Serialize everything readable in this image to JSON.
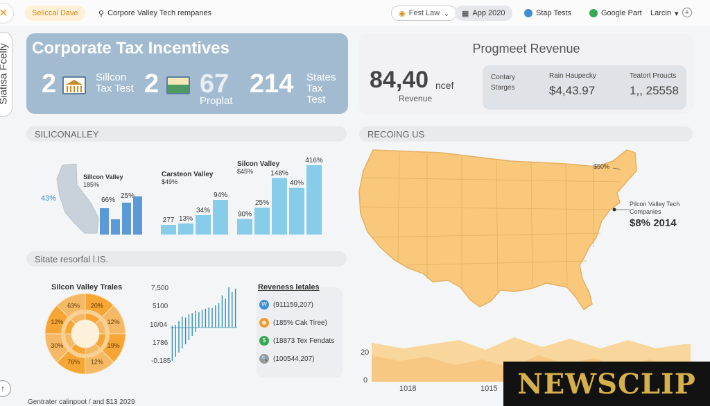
{
  "topbar": {
    "brand": "Seliccal Dave",
    "search_text": "Corpore Valley Tech rempanes",
    "filter_label": "Fest Law",
    "app_label": "App 2020",
    "stap_label": "Stap Tests",
    "google_label": "Google Part",
    "user_label": "Larcin"
  },
  "side_tab": {
    "label": "Siatisa Fcelly"
  },
  "hero": {
    "title": "Corporate Tax Incentives",
    "items": [
      {
        "num": "2",
        "label": "Sillcon Tax Test"
      },
      {
        "num": "2",
        "label": ""
      },
      {
        "num": "67",
        "label": "Proplat"
      },
      {
        "num": "214",
        "label": "States Tax Test"
      }
    ]
  },
  "revenue": {
    "title": "Progmeet Revenue",
    "big_value": "84,40",
    "big_unit": "ncef",
    "big_caption": "Revenue",
    "stats": [
      {
        "label": "Contary Starges",
        "value": ""
      },
      {
        "label": "Rain Haupecky",
        "value": "$4,43.97"
      },
      {
        "label": "Teatort Proucts",
        "value": "1,, 25558"
      }
    ]
  },
  "sections": {
    "silicon": "SILICONALLEY",
    "recoing": "RECOING US",
    "state": "Sitate resorfal l.IS."
  },
  "silicon_charts": {
    "ca_pct": "43%",
    "ca_label": "Sillcon Valley",
    "ca_sub": "185%",
    "chart1": {
      "labels": [
        "66%",
        "25%"
      ],
      "values": [
        38,
        22,
        46,
        55
      ]
    },
    "chart2": {
      "title": "Carsteon Valley",
      "sub": "$49%",
      "labels": [
        "277",
        "13%",
        "34%",
        "94%"
      ],
      "values": [
        14,
        16,
        28,
        50
      ]
    },
    "chart3": {
      "title": "Silcon Valley",
      "sub": "$45%",
      "labels": [
        "90%",
        "25%",
        "148%",
        "40%",
        "416%"
      ],
      "values": [
        22,
        38,
        80,
        66,
        98
      ]
    }
  },
  "map": {
    "callout_top": "$50%",
    "callout_label": "Pilcon Valley Tech Companies",
    "callout_value": "$8% 2014",
    "y_labels": [
      "20",
      "0"
    ],
    "x_labels": [
      "1018",
      "1015"
    ]
  },
  "donut": {
    "title": "Silcon Valley Trales",
    "labels": [
      "20%",
      "12%",
      "19%",
      "12%",
      "76%",
      "30%",
      "12%",
      "63%"
    ],
    "colors": [
      "#f7a534",
      "#f5b965",
      "#f8d197"
    ]
  },
  "line_chart": {
    "y_labels": [
      "7,500",
      "5100",
      "10/04",
      "1786",
      "-0.185"
    ],
    "values": [
      3,
      5,
      12,
      20,
      18,
      24,
      26,
      30,
      28,
      32,
      34,
      36,
      35,
      40,
      44,
      58,
      52,
      80,
      64,
      70
    ]
  },
  "legend": {
    "title": "Reveness letales",
    "items": [
      {
        "icon": "W",
        "color": "#3d8fd1",
        "label": "(911159,207)"
      },
      {
        "icon": "◉",
        "color": "#f39a2e",
        "label": "(185% Cak Tiree)"
      },
      {
        "icon": "$",
        "color": "#36a852",
        "label": "(18873 Tex Fendats"
      },
      {
        "icon": "🔍",
        "color": "#999999",
        "label": "(100544,207)"
      }
    ]
  },
  "footer": {
    "text": "Gentrater calinpoot / and $13 2029"
  },
  "watermark": {
    "text": "NEWSCLIP"
  }
}
